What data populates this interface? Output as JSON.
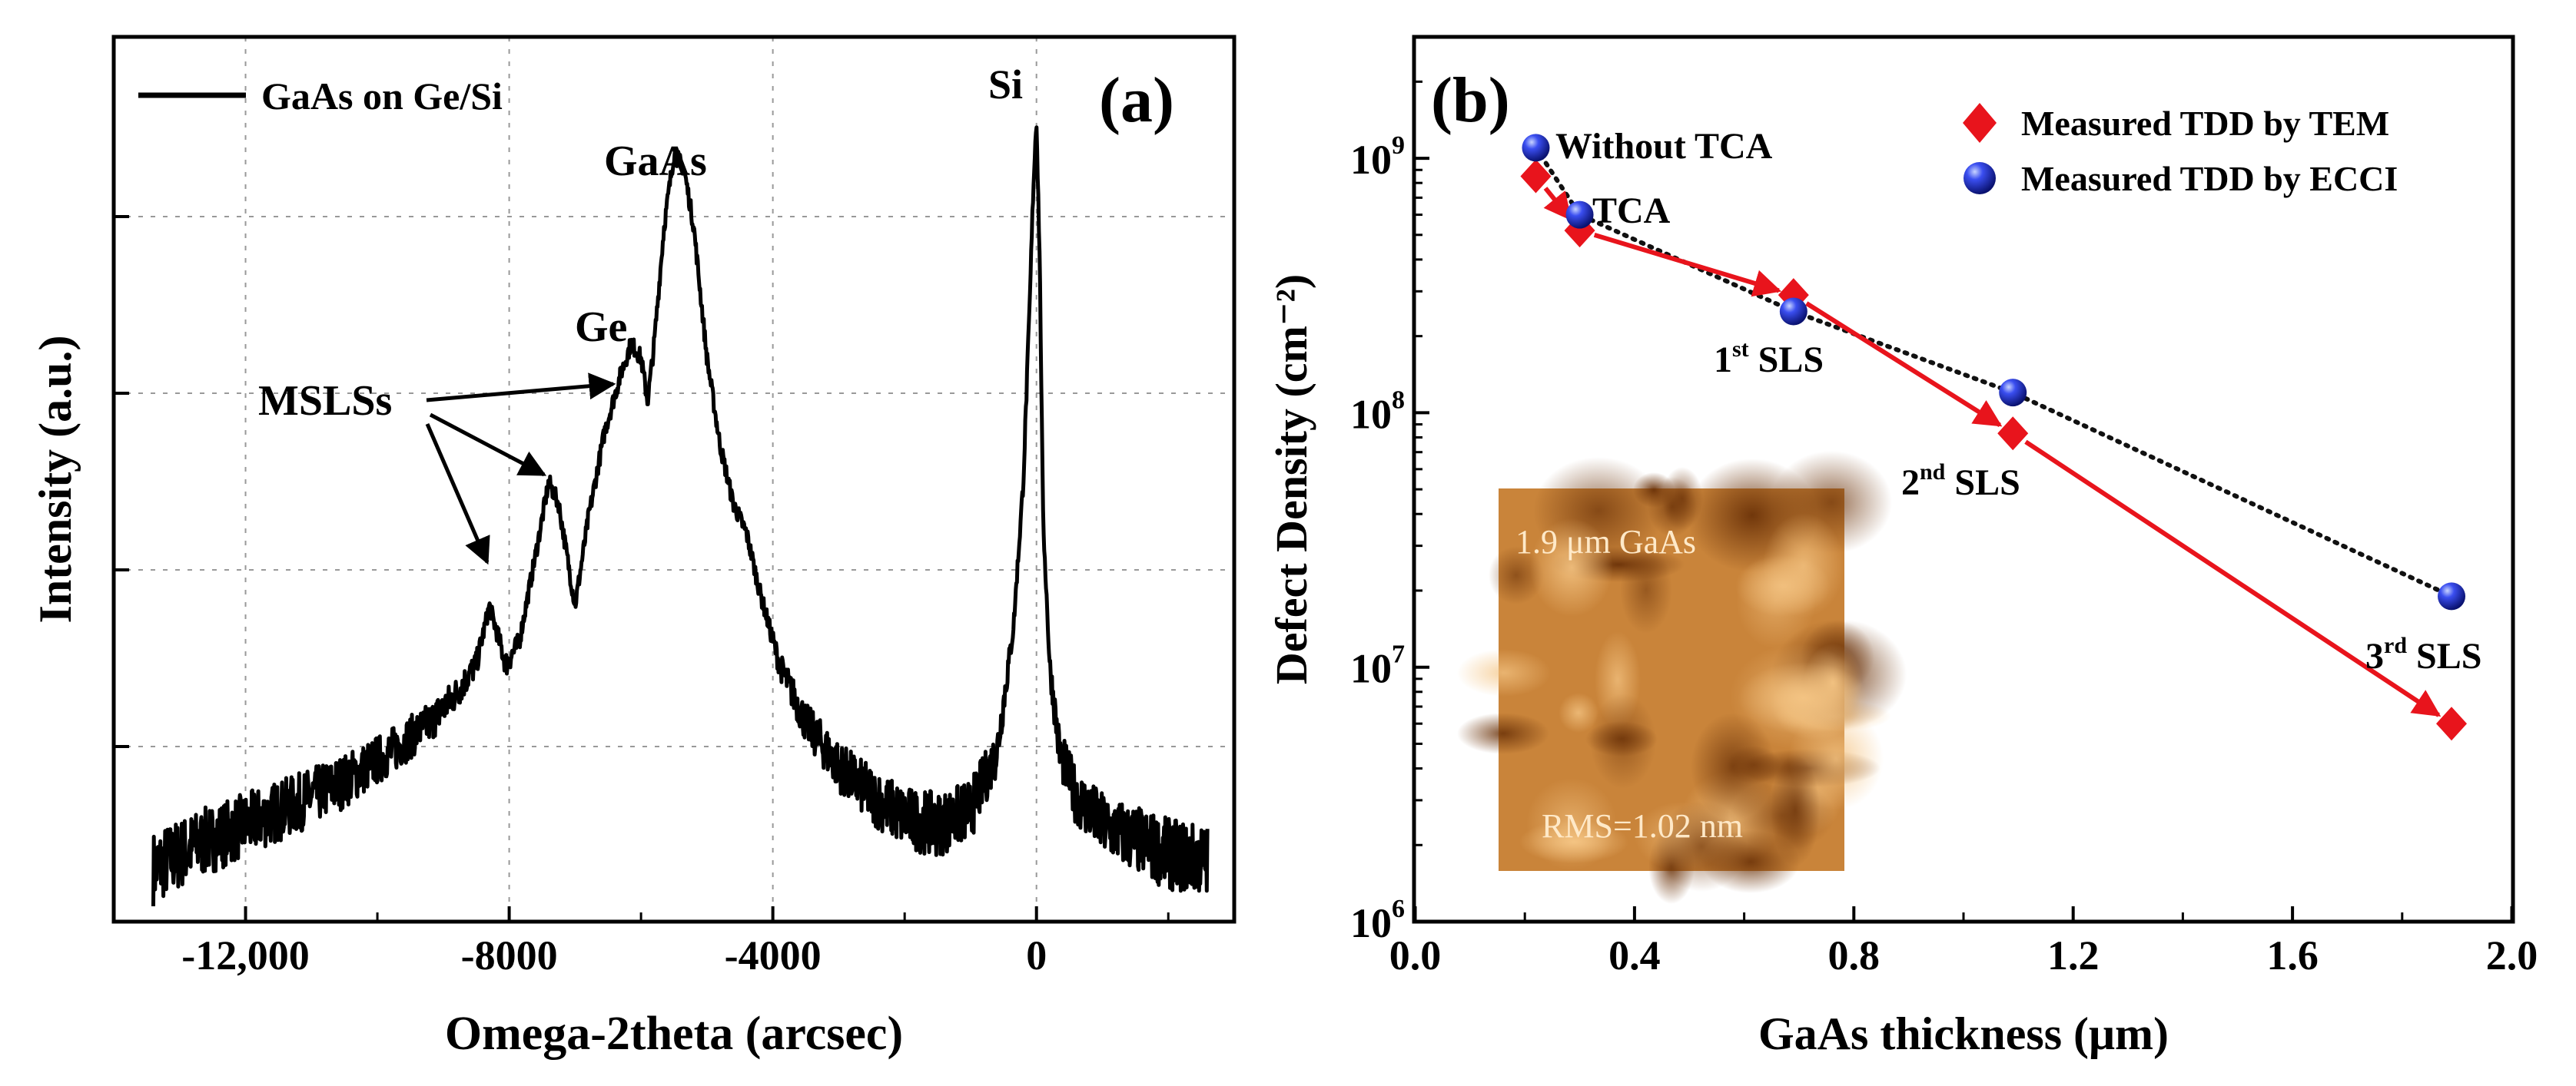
{
  "chart_data": [
    {
      "panel": "(a)",
      "type": "line",
      "ylabel": "Intensity (a.u.)",
      "xlabel": "Omega-2theta (arcsec)",
      "xlim": [
        -14000,
        3000
      ],
      "yscale": "arbitrary",
      "grid": true,
      "x_ticks": [
        -12000,
        -8000,
        -4000,
        0
      ],
      "x_tick_labels": [
        "-12,000",
        "-8000",
        "-4000",
        "0"
      ],
      "legend": {
        "position": "top-left",
        "entries": [
          "GaAs on Ge/Si"
        ]
      },
      "series": [
        {
          "name": "GaAs on Ge/Si",
          "x": [
            -13400,
            -12800,
            -12000,
            -11200,
            -10500,
            -9800,
            -9200,
            -8800,
            -8500,
            -8300,
            -8050,
            -7850,
            -7600,
            -7400,
            -7250,
            -7000,
            -6800,
            -6550,
            -6300,
            -6150,
            -6000,
            -5900,
            -5800,
            -5650,
            -5500,
            -5350,
            -5200,
            -5000,
            -4800,
            -4600,
            -4400,
            -4200,
            -3900,
            -3500,
            -3000,
            -2500,
            -2000,
            -1500,
            -1000,
            -600,
            -350,
            -200,
            -100,
            -50,
            0,
            50,
            100,
            200,
            350,
            600,
            1000,
            1500,
            2000,
            2600
          ],
          "y": [
            0.02,
            0.05,
            0.08,
            0.11,
            0.14,
            0.18,
            0.22,
            0.26,
            0.3,
            0.38,
            0.3,
            0.33,
            0.45,
            0.55,
            0.52,
            0.38,
            0.5,
            0.62,
            0.7,
            0.74,
            0.72,
            0.66,
            0.74,
            0.9,
            1.0,
            0.98,
            0.9,
            0.72,
            0.6,
            0.52,
            0.48,
            0.4,
            0.3,
            0.22,
            0.16,
            0.12,
            0.09,
            0.08,
            0.1,
            0.18,
            0.35,
            0.55,
            0.8,
            0.95,
            1.05,
            0.85,
            0.5,
            0.3,
            0.18,
            0.12,
            0.08,
            0.06,
            0.04,
            0.03
          ]
        }
      ],
      "annotations": [
        "(a)",
        "Si",
        "GaAs",
        "Ge",
        "MSLSs"
      ]
    },
    {
      "panel": "(b)",
      "type": "scatter",
      "ylabel": "Defect Density (cm⁻²)",
      "xlabel": "GaAs thickness (μm)",
      "xlim": [
        0.0,
        2.0
      ],
      "ylim": [
        1000000,
        3000000000
      ],
      "yscale": "log",
      "x_ticks": [
        0.0,
        0.4,
        0.8,
        1.2,
        1.6,
        2.0
      ],
      "x_tick_labels": [
        "0.0",
        "0.4",
        "0.8",
        "1.2",
        "1.6",
        "2.0"
      ],
      "y_ticks": [
        1000000,
        10000000,
        100000000,
        1000000000
      ],
      "y_tick_bases": [
        "10",
        "10",
        "10",
        "10"
      ],
      "y_tick_exponents": [
        "6",
        "7",
        "8",
        "9"
      ],
      "legend": {
        "position": "top-right",
        "entries": [
          "Measured TDD by TEM",
          "Measured TDD by ECCI"
        ]
      },
      "series": [
        {
          "name": "Measured TDD by TEM",
          "marker": "diamond",
          "color": "#e8141c",
          "x": [
            0.22,
            0.3,
            0.69,
            1.09,
            1.89
          ],
          "y": [
            850000000,
            520000000,
            290000000,
            83000000,
            6000000
          ]
        },
        {
          "name": "Measured TDD by ECCI",
          "marker": "sphere",
          "color": "#2030d8",
          "x": [
            0.22,
            0.3,
            0.69,
            1.09,
            1.89
          ],
          "y": [
            1100000000,
            600000000,
            250000000,
            120000000,
            19000000
          ]
        }
      ],
      "annotations": {
        "panel_label": "(b)",
        "without_tca": "Without TCA",
        "tca": "TCA",
        "sls1": {
          "main": "1",
          "sup": "st",
          "tail": " SLS"
        },
        "sls2": {
          "main": "2",
          "sup": "nd",
          "tail": " SLS"
        },
        "sls3": {
          "main": "3",
          "sup": "rd",
          "tail": " SLS"
        }
      },
      "inset": {
        "title": "1.9 μm GaAs",
        "rms": "RMS=1.02 nm"
      }
    }
  ],
  "colors": {
    "tem": "#e8141c",
    "ecci": "#2030d8",
    "axis": "#000000",
    "inset_base": "#c9843a"
  }
}
